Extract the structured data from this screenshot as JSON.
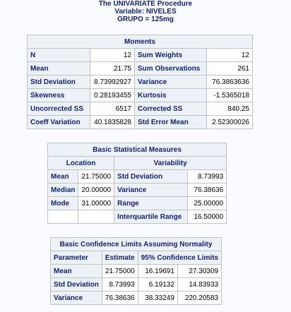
{
  "titles": {
    "line1": "The UNIVARIATE Procedure",
    "line2": "Variable: NIVELES",
    "line3": "GRUPO = 125mg"
  },
  "moments": {
    "caption": "Moments",
    "rows": [
      [
        "N",
        "12",
        "Sum Weights",
        "12"
      ],
      [
        "Mean",
        "21.75",
        "Sum Observations",
        "261"
      ],
      [
        "Std Deviation",
        "8.73992927",
        "Variance",
        "76.3863636"
      ],
      [
        "Skewness",
        "0.28193455",
        "Kurtosis",
        "-1.5365018"
      ],
      [
        "Uncorrected SS",
        "6517",
        "Corrected SS",
        "840.25"
      ],
      [
        "Coeff Variation",
        "40.1835828",
        "Std Error Mean",
        "2.52300026"
      ]
    ]
  },
  "basic": {
    "caption": "Basic Statistical Measures",
    "location_header": "Location",
    "variability_header": "Variability",
    "rows": [
      [
        "Mean",
        "21.75000",
        "Std Deviation",
        "8.73993"
      ],
      [
        "Median",
        "20.00000",
        "Variance",
        "76.38636"
      ],
      [
        "Mode",
        "31.00000",
        "Range",
        "25.00000"
      ],
      [
        "",
        "",
        "Interquartile Range",
        "16.50000"
      ]
    ]
  },
  "confidence": {
    "caption": "Basic Confidence Limits Assuming Normality",
    "headers": [
      "Parameter",
      "Estimate",
      "95% Confidence Limits"
    ],
    "rows": [
      [
        "Mean",
        "21.75000",
        "16.19691",
        "27.30309"
      ],
      [
        "Std Deviation",
        "8.73993",
        "6.19132",
        "14.83933"
      ],
      [
        "Variance",
        "76.38636",
        "38.33249",
        "220.20583"
      ]
    ]
  }
}
